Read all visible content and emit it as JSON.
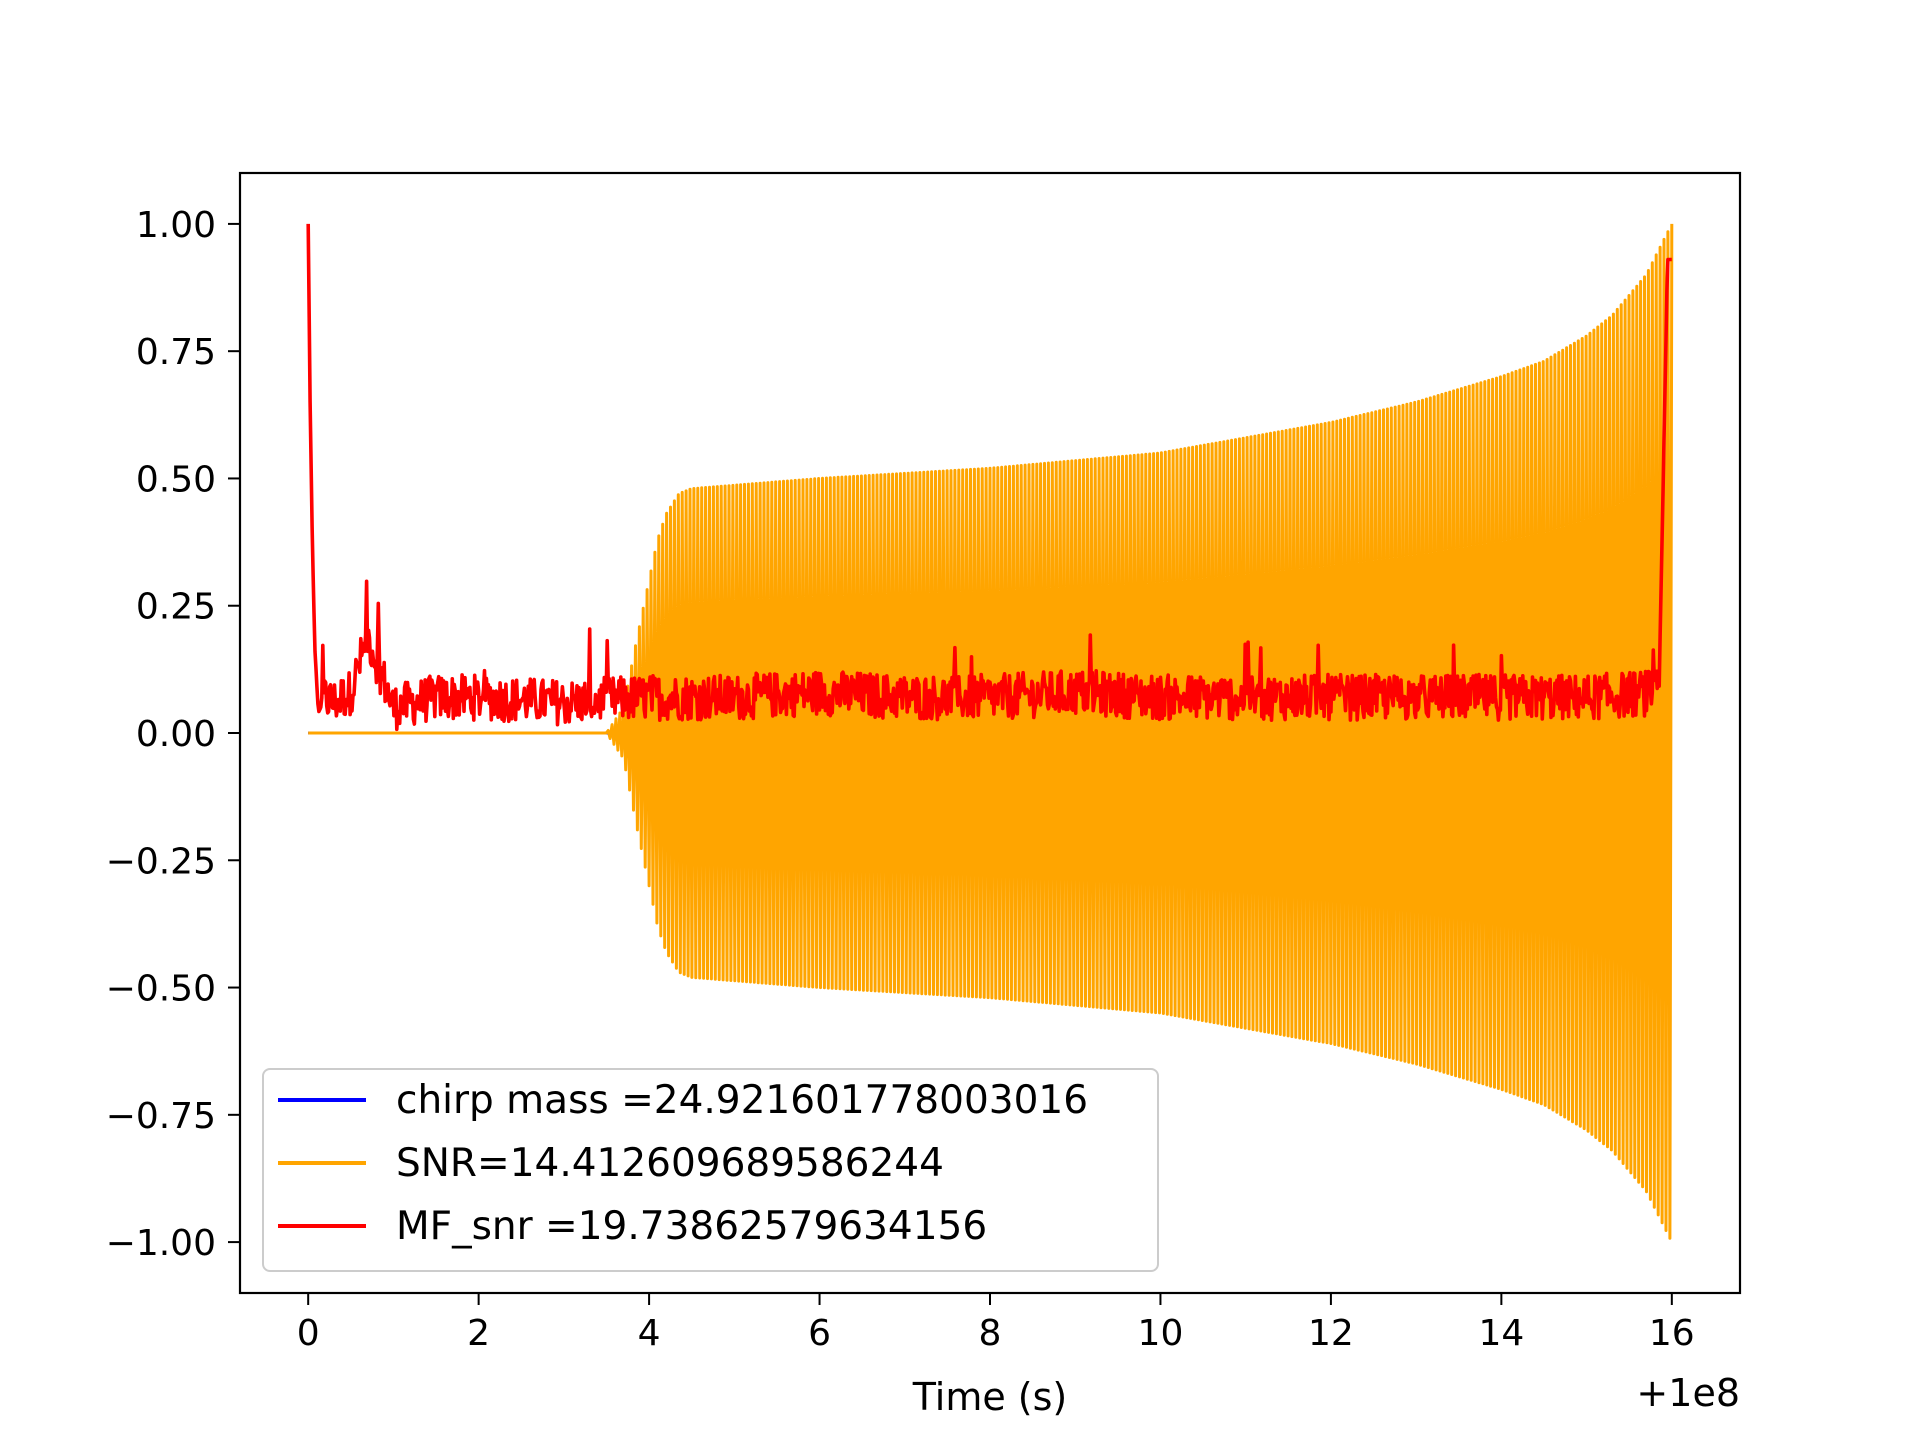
{
  "chart_data": {
    "type": "line",
    "title": "",
    "xlabel": "Time (s)",
    "ylabel": "",
    "x_offset_label": "+1e8",
    "xlim": [
      -0.8,
      16.8
    ],
    "ylim": [
      -1.1,
      1.1
    ],
    "x_ticks": [
      0,
      2,
      4,
      6,
      8,
      10,
      12,
      14,
      16
    ],
    "x_tick_labels": [
      "0",
      "2",
      "4",
      "6",
      "8",
      "10",
      "12",
      "14",
      "16"
    ],
    "y_ticks": [
      1.0,
      0.75,
      0.5,
      0.25,
      0.0,
      -0.25,
      -0.5,
      -0.75,
      -1.0
    ],
    "y_tick_labels": [
      "1.00",
      "0.75",
      "0.50",
      "0.25",
      "0.00",
      "−0.25",
      "−0.50",
      "−0.75",
      "−1.00"
    ],
    "grid": false,
    "legend_position": "lower-left",
    "series": [
      {
        "name": "chirp mass =24.921601778003016",
        "color": "#0000ff",
        "style": "flat line at zero",
        "x": [
          0,
          16
        ],
        "y": [
          0,
          0
        ]
      },
      {
        "name": "SNR=14.412609689586244",
        "color": "#ffa500",
        "style": "oscillating chirp waveform, envelope shown",
        "x_start": 0,
        "x_end": 16,
        "envelope_x": [
          0,
          3.5,
          3.7,
          3.85,
          4.0,
          4.1,
          4.2,
          4.35,
          4.5,
          6,
          8,
          10,
          11,
          12,
          13,
          14,
          14.5,
          15,
          15.3,
          15.5,
          15.7,
          15.85,
          16.0
        ],
        "envelope_amplitude": [
          0.0,
          0.0,
          0.05,
          0.18,
          0.3,
          0.38,
          0.43,
          0.47,
          0.48,
          0.5,
          0.52,
          0.55,
          0.58,
          0.61,
          0.65,
          0.7,
          0.73,
          0.78,
          0.82,
          0.86,
          0.9,
          0.95,
          1.0
        ]
      },
      {
        "name": "MF_snr =19.73862579634156",
        "color": "#ff0000",
        "style": "noisy matched-filter output",
        "x": [
          0.0,
          0.02,
          0.05,
          0.08,
          0.12,
          0.2,
          0.3,
          0.5,
          0.7,
          1.0,
          1.5,
          2.0,
          3.0,
          4.0,
          5.0,
          6.0,
          7.0,
          8.0,
          9.0,
          10.0,
          11.0,
          12.0,
          13.0,
          14.0,
          15.0,
          15.85,
          15.95,
          16.0
        ],
        "y": [
          1.0,
          0.68,
          0.36,
          0.16,
          0.04,
          0.07,
          0.06,
          0.08,
          0.19,
          0.05,
          0.07,
          0.07,
          0.06,
          0.07,
          0.07,
          0.08,
          0.07,
          0.07,
          0.08,
          0.07,
          0.07,
          0.07,
          0.07,
          0.07,
          0.07,
          0.08,
          0.93,
          0.93
        ]
      }
    ],
    "legend": [
      {
        "label": "chirp mass =24.921601778003016",
        "color": "#0000ff"
      },
      {
        "label": "SNR=14.412609689586244",
        "color": "#ffa500"
      },
      {
        "label": "MF_snr =19.73862579634156",
        "color": "#ff0000"
      }
    ]
  }
}
